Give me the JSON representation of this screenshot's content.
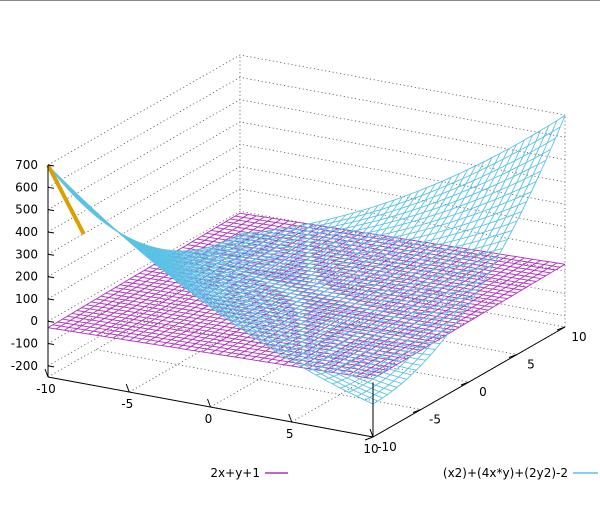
{
  "chart_data": {
    "type": "surface3d",
    "title": "",
    "xlabel": "",
    "ylabel": "",
    "zlabel": "",
    "x_range": [
      -10,
      10
    ],
    "y_range": [
      -10,
      10
    ],
    "z_range": [
      -250,
      700
    ],
    "x_ticks": [
      -10,
      -5,
      0,
      5,
      10
    ],
    "y_ticks": [
      -10,
      -5,
      0,
      5,
      10
    ],
    "z_ticks": [
      -200,
      -100,
      0,
      100,
      200,
      300,
      400,
      500,
      600,
      700
    ],
    "grid": true,
    "legend_position": "bottom",
    "grid_samples": 40,
    "series": [
      {
        "name": "2x+y+1",
        "function": "2*x + y + 1",
        "color": "#b030c0"
      },
      {
        "name": "(x2)+(4x*y)+(2y2)-2",
        "function": "x*x + 4*x*y + 2*y*y - 2",
        "color": "#5bc2e5"
      }
    ],
    "clip_color": "#d9a000"
  }
}
